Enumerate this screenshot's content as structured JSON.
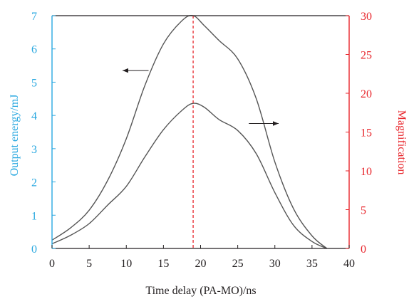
{
  "chart_data": {
    "type": "line",
    "xlabel": "Time delay (PA-MO)/ns",
    "ylabel_left": "Output energy/mJ",
    "ylabel_right": "Magnification",
    "xlim": [
      0,
      40
    ],
    "ylim_left": [
      0,
      7
    ],
    "ylim_right": [
      0,
      30
    ],
    "x_ticks": [
      0,
      5,
      10,
      15,
      20,
      25,
      30,
      35,
      40
    ],
    "y_left_ticks": [
      0,
      1,
      2,
      3,
      4,
      5,
      6,
      7
    ],
    "y_right_ticks": [
      0,
      5,
      10,
      15,
      20,
      25,
      30
    ],
    "grid": false,
    "colors": {
      "left_axis": "#29a8e0",
      "right_axis": "#e8262c",
      "frame": "#231f20",
      "curves": "#555555",
      "peak_line": "#e8262c"
    },
    "series": [
      {
        "axis": "left",
        "points": [
          [
            0,
            0.25
          ],
          [
            2.5,
            0.62
          ],
          [
            5,
            1.15
          ],
          [
            7.5,
            2.05
          ],
          [
            10,
            3.3
          ],
          [
            12.5,
            4.9
          ],
          [
            15,
            6.15
          ],
          [
            17.5,
            6.85
          ],
          [
            19,
            7.0
          ],
          [
            20.5,
            6.7
          ],
          [
            22.5,
            6.25
          ],
          [
            25,
            5.7
          ],
          [
            27.5,
            4.5
          ],
          [
            30,
            2.6
          ],
          [
            32.5,
            1.2
          ],
          [
            35,
            0.38
          ],
          [
            37,
            0.0
          ]
        ]
      },
      {
        "axis": "right",
        "points": [
          [
            0,
            0.6
          ],
          [
            2.5,
            1.7
          ],
          [
            5,
            3.2
          ],
          [
            7.5,
            5.6
          ],
          [
            10,
            8.0
          ],
          [
            12.5,
            11.8
          ],
          [
            15,
            15.3
          ],
          [
            17.5,
            17.8
          ],
          [
            19,
            18.7
          ],
          [
            20.5,
            18.2
          ],
          [
            22.5,
            16.6
          ],
          [
            25,
            15.2
          ],
          [
            27.5,
            12.2
          ],
          [
            30,
            7.2
          ],
          [
            32.5,
            3.0
          ],
          [
            35,
            0.9
          ],
          [
            37,
            0.0
          ]
        ]
      }
    ],
    "vline_x": 19,
    "annotations": [
      {
        "type": "arrow",
        "direction": "left",
        "points_to": "left axis",
        "from": [
          13,
          5.35
        ],
        "to": [
          9.5,
          5.35
        ]
      },
      {
        "type": "arrow",
        "direction": "right",
        "points_to": "right axis",
        "from": [
          26.5,
          16.1
        ],
        "to": [
          30.5,
          16.1
        ]
      }
    ]
  }
}
